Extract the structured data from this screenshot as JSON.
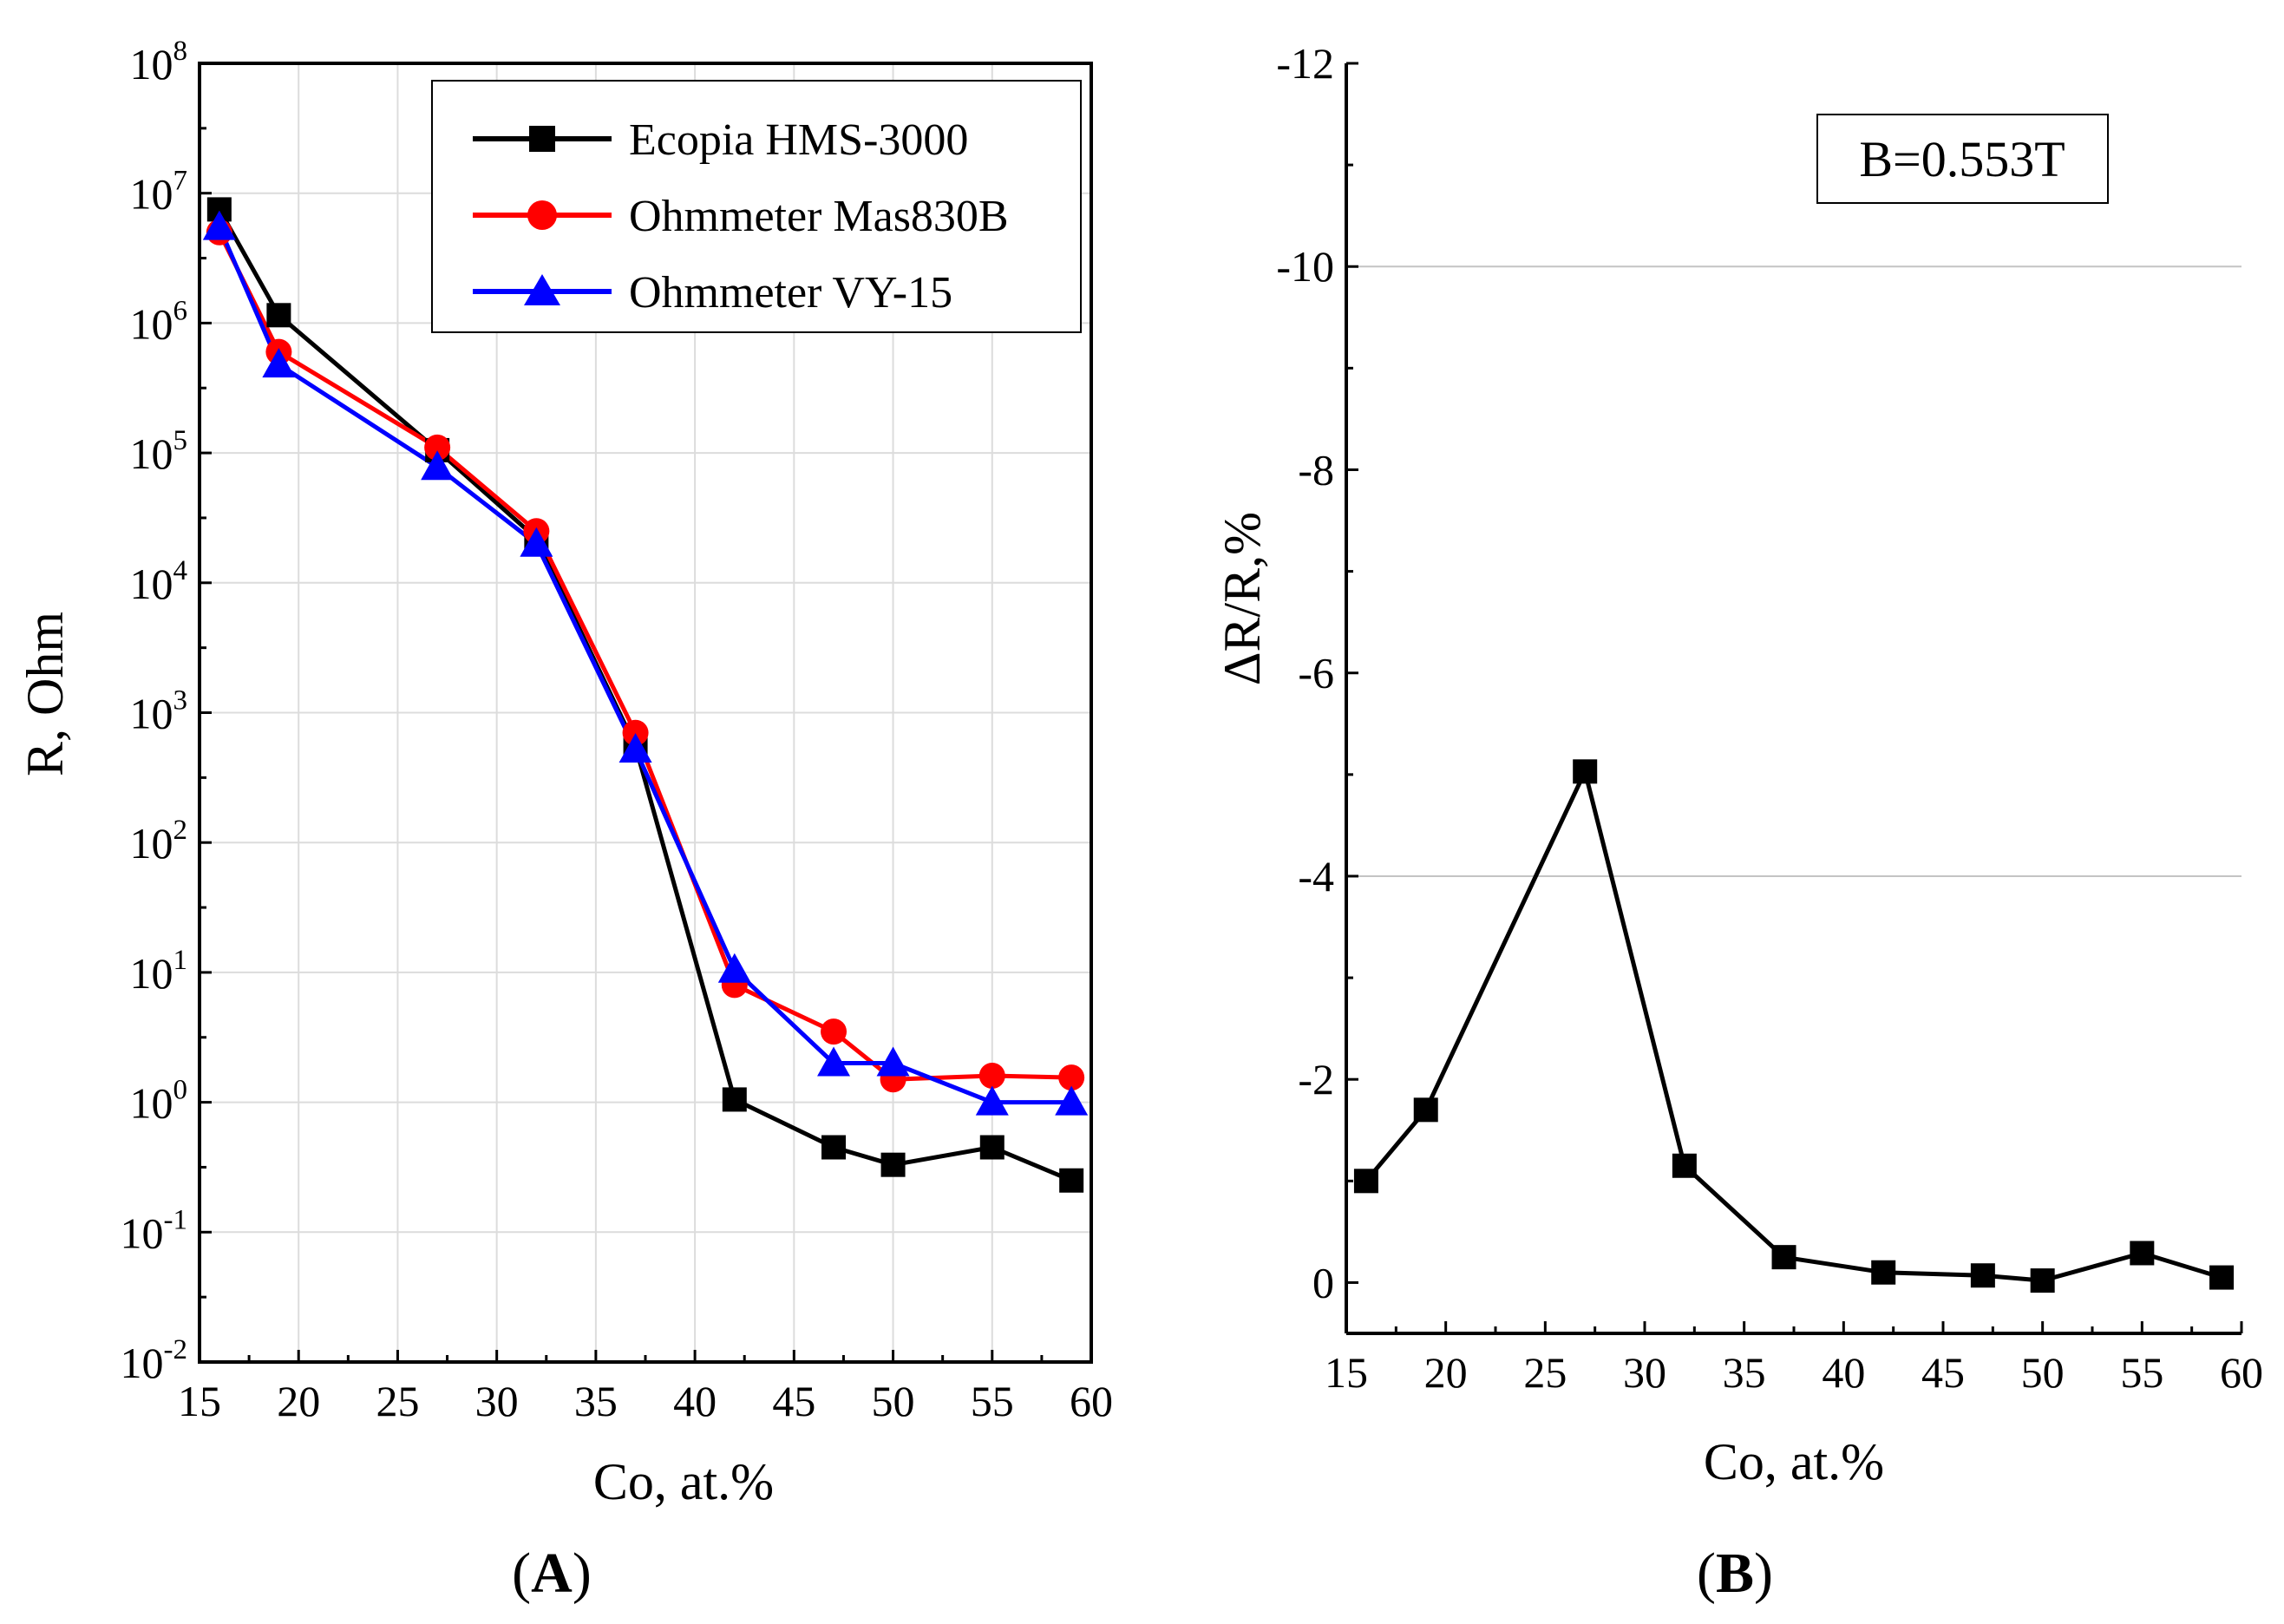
{
  "chart_data": [
    {
      "type": "line",
      "yscale": "log",
      "panel_label": "A",
      "xlabel": "Co, at.%",
      "ylabel": "R, Ohm",
      "xlim": [
        15,
        60
      ],
      "ylim": [
        0.01,
        100000000
      ],
      "x_ticks": [
        15,
        20,
        25,
        30,
        35,
        40,
        45,
        50,
        55,
        60
      ],
      "y_ticks": [
        {
          "base": "10",
          "exp": "-2",
          "value": 0.01
        },
        {
          "base": "10",
          "exp": "-1",
          "value": 0.1
        },
        {
          "base": "10",
          "exp": "0",
          "value": 1
        },
        {
          "base": "10",
          "exp": "1",
          "value": 10
        },
        {
          "base": "10",
          "exp": "2",
          "value": 100
        },
        {
          "base": "10",
          "exp": "3",
          "value": 1000
        },
        {
          "base": "10",
          "exp": "4",
          "value": 10000
        },
        {
          "base": "10",
          "exp": "5",
          "value": 100000
        },
        {
          "base": "10",
          "exp": "6",
          "value": 1000000
        },
        {
          "base": "10",
          "exp": "7",
          "value": 10000000
        },
        {
          "base": "10",
          "exp": "8",
          "value": 100000000
        }
      ],
      "grid": true,
      "legend_position": "top-right",
      "series": [
        {
          "name": "Ecopia HMS-3000",
          "color": "#000000",
          "marker": "square",
          "x": [
            16,
            19,
            27,
            32,
            37,
            42,
            47,
            50,
            55,
            59
          ],
          "values": [
            7500000,
            1150000,
            105000,
            22000,
            550,
            1.05,
            0.45,
            0.33,
            0.45,
            0.25
          ]
        },
        {
          "name": "Ohmmeter Mas830B",
          "color": "#ff0000",
          "marker": "circle",
          "x": [
            16,
            19,
            27,
            32,
            37,
            42,
            47,
            50,
            55,
            59
          ],
          "values": [
            5000000,
            600000,
            110000,
            25000,
            700,
            8,
            3.5,
            1.5,
            1.6,
            1.55
          ]
        },
        {
          "name": "Ohmmeter VY-15",
          "color": "#0000ff",
          "marker": "triangle",
          "x": [
            16,
            19,
            27,
            32,
            37,
            42,
            47,
            50,
            55,
            59
          ],
          "values": [
            5500000,
            480000,
            78000,
            20000,
            520,
            10.5,
            2,
            2,
            1,
            1
          ]
        }
      ]
    },
    {
      "type": "line",
      "panel_label": "B",
      "xlabel": "Co, at.%",
      "ylabel": "ΔR/R,%",
      "annotation": "B=0.553T",
      "xlim": [
        15,
        60
      ],
      "ylim": [
        0.5,
        -12
      ],
      "x_ticks": [
        15,
        20,
        25,
        30,
        35,
        40,
        45,
        50,
        55,
        60
      ],
      "y_ticks": [
        "-12",
        "-10",
        "-8",
        "-6",
        "-4",
        "-2",
        "0"
      ],
      "y_grid": [
        -10,
        -4
      ],
      "series": [
        {
          "name": "ΔR/R",
          "color": "#000000",
          "marker": "square",
          "x": [
            16,
            19,
            27,
            32,
            37,
            42,
            47,
            50,
            55,
            59
          ],
          "values": [
            -1.0,
            -1.7,
            -5.03,
            -1.15,
            -0.25,
            -0.1,
            -0.07,
            -0.02,
            -0.29,
            -0.05
          ]
        }
      ]
    }
  ]
}
